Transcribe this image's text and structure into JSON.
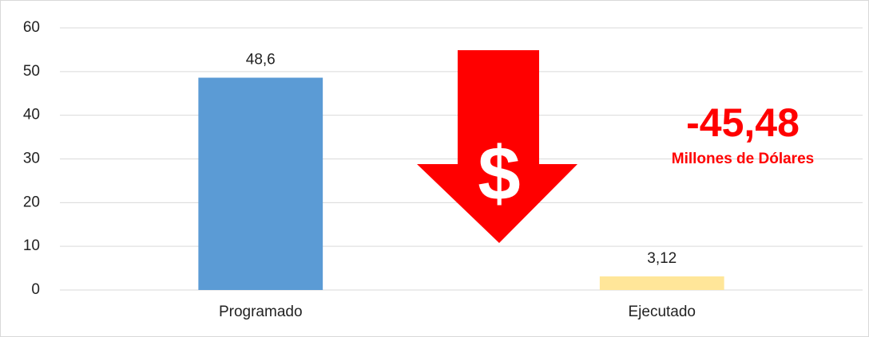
{
  "chart_data": {
    "type": "bar",
    "categories": [
      "Programado",
      "Ejecutado"
    ],
    "values": [
      48.6,
      3.12
    ],
    "value_labels": [
      "48,6",
      "3,12"
    ],
    "colors": [
      "#5b9bd5",
      "#ffe699"
    ],
    "ylim": [
      0,
      60
    ],
    "yticks": [
      0,
      10,
      20,
      30,
      40,
      50,
      60
    ],
    "grid": true,
    "annotations": {
      "symbol": "$",
      "difference": "-45,48",
      "unit": "Millones de Dólares"
    },
    "annotation_color": "#ff0000"
  }
}
